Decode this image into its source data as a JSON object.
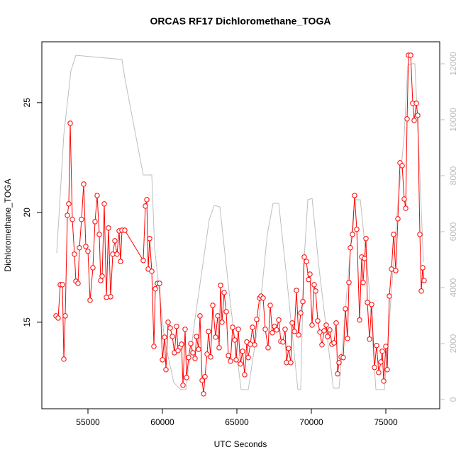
{
  "chart_data": {
    "type": "line",
    "title": "ORCAS RF17 Dichloromethane_TOGA",
    "xlabel": "UTC Seconds",
    "ylabel": "Dichloromethane_TOGA",
    "xlim": [
      51905,
      78619
    ],
    "xticks": [
      55000,
      60000,
      65000,
      70000,
      75000
    ],
    "ylim": [
      11.06,
      27.77
    ],
    "yticks": [
      15,
      20,
      25
    ],
    "y2lim": [
      -329,
      12785
    ],
    "y2ticks": [
      0,
      2000,
      4000,
      6000,
      8000,
      10000,
      12000
    ],
    "y2color": "#bebebe",
    "series": [
      {
        "color": "#ff0000",
        "marker": "circle",
        "x": [
          52857,
          53000,
          53143,
          53286,
          53381,
          53476,
          53619,
          53714,
          53810,
          53952,
          54095,
          54190,
          54333,
          54429,
          54571,
          54714,
          54857,
          55000,
          55143,
          55333,
          55476,
          55619,
          55762,
          55857,
          55952,
          56095,
          56238,
          56381,
          56524,
          56667,
          56810,
          56952,
          57095,
          57190,
          57286,
          57476,
          58714,
          58857,
          58952,
          59048,
          59143,
          59286,
          59429,
          59524,
          59667,
          59810,
          60000,
          60143,
          60238,
          60381,
          60524,
          60667,
          60810,
          60952,
          61048,
          61190,
          61286,
          61381,
          61524,
          61619,
          61762,
          61905,
          62048,
          62190,
          62286,
          62429,
          62524,
          62667,
          62762,
          62857,
          63000,
          63095,
          63238,
          63381,
          63571,
          63714,
          63810,
          63905,
          64000,
          64143,
          64286,
          64429,
          64571,
          64714,
          64857,
          64952,
          65095,
          65238,
          65381,
          65524,
          65667,
          65762,
          65905,
          66048,
          66190,
          66333,
          66524,
          66619,
          66762,
          66905,
          67095,
          67238,
          67381,
          67524,
          67667,
          67810,
          67952,
          68095,
          68238,
          68333,
          68476,
          68619,
          68714,
          68857,
          69000,
          69143,
          69286,
          69429,
          69524,
          69667,
          69810,
          69905,
          70048,
          70190,
          70286,
          70429,
          70571,
          70714,
          70857,
          71000,
          71095,
          71238,
          71381,
          71524,
          71667,
          71762,
          71857,
          72000,
          72143,
          72286,
          72429,
          72524,
          72619,
          72762,
          72905,
          73048,
          73238,
          73381,
          73476,
          73571,
          73667,
          73762,
          73905,
          74048,
          74238,
          74381,
          74524,
          74667,
          74762,
          74857,
          75000,
          75095,
          75238,
          75381,
          75524,
          75667,
          75810,
          75952,
          76095,
          76238,
          76333,
          76429,
          76524,
          76667,
          76810,
          76905,
          77048,
          77143,
          77286,
          77381,
          77476,
          77571
        ],
        "values": [
          15.29,
          15.19,
          16.71,
          16.71,
          13.32,
          15.29,
          19.87,
          20.39,
          24.06,
          19.68,
          18.1,
          16.87,
          16.77,
          18.39,
          19.68,
          21.29,
          18.45,
          18.23,
          16.0,
          17.48,
          19.58,
          20.77,
          19.0,
          16.9,
          17.1,
          20.39,
          16.13,
          19.29,
          16.16,
          18.1,
          18.71,
          18.1,
          19.16,
          17.77,
          19.19,
          19.19,
          17.81,
          20.29,
          20.58,
          17.42,
          18.81,
          17.32,
          13.9,
          16.52,
          16.77,
          16.77,
          13.29,
          14.32,
          12.84,
          15.0,
          14.74,
          14.35,
          13.61,
          14.81,
          13.71,
          13.87,
          14.0,
          12.13,
          14.68,
          12.48,
          13.39,
          14.03,
          13.61,
          13.35,
          14.35,
          13.77,
          15.29,
          12.35,
          11.74,
          12.52,
          13.55,
          14.58,
          13.42,
          15.77,
          14.32,
          15.29,
          13.84,
          16.68,
          15.0,
          16.35,
          15.48,
          13.48,
          13.23,
          14.77,
          14.19,
          13.29,
          14.68,
          13.1,
          13.68,
          12.61,
          14.1,
          13.39,
          14.0,
          14.77,
          13.97,
          15.13,
          16.1,
          16.19,
          16.1,
          14.68,
          13.84,
          15.77,
          14.52,
          14.81,
          14.65,
          15.1,
          14.13,
          14.1,
          14.68,
          13.16,
          13.81,
          13.16,
          14.97,
          14.58,
          16.45,
          14.42,
          15.42,
          15.94,
          17.97,
          17.77,
          16.94,
          17.19,
          14.87,
          16.71,
          16.42,
          15.06,
          14.55,
          13.97,
          14.61,
          14.87,
          14.35,
          14.65,
          14.0,
          14.06,
          14.97,
          12.65,
          13.16,
          13.42,
          13.39,
          15.61,
          14.26,
          16.81,
          18.39,
          19.0,
          20.77,
          19.23,
          15.1,
          17.97,
          16.81,
          17.9,
          18.81,
          15.9,
          14.23,
          15.81,
          12.94,
          13.94,
          12.71,
          13.19,
          13.68,
          12.32,
          13.9,
          12.84,
          16.19,
          17.42,
          19.0,
          17.35,
          19.71,
          22.26,
          22.13,
          20.61,
          20.19,
          24.26,
          27.16,
          27.16,
          24.97,
          24.19,
          24.97,
          24.42,
          19.0,
          16.42,
          17.48,
          16.9
        ]
      },
      {
        "color": "#bebebe",
        "axis": "y2",
        "x": [
          52905,
          53381,
          53857,
          54190,
          57286,
          57476,
          58714,
          59286,
          59476,
          60143,
          60762,
          61238,
          61571,
          62190,
          63143,
          63476,
          63857,
          64571,
          65286,
          65762,
          66476,
          67048,
          67429,
          67810,
          68381,
          69095,
          69286,
          69476,
          69762,
          70048,
          70524,
          71476,
          71857,
          72429,
          72905,
          73286,
          73857,
          74333,
          74905,
          75762,
          76238,
          76476,
          76714,
          76952,
          77190,
          77524
        ],
        "values": [
          5240,
          9468,
          11747,
          12304,
          12152,
          11494,
          8025,
          8025,
          5418,
          2127,
          608,
          354,
          354,
          2886,
          6430,
          6937,
          6886,
          3392,
          354,
          354,
          2886,
          5924,
          7013,
          7013,
          4152,
          354,
          354,
          4658,
          7139,
          7190,
          4658,
          405,
          405,
          4152,
          7139,
          7139,
          4152,
          354,
          354,
          6684,
          9468,
          11949,
          12000,
          12000,
          9215,
          4911
        ]
      }
    ]
  }
}
